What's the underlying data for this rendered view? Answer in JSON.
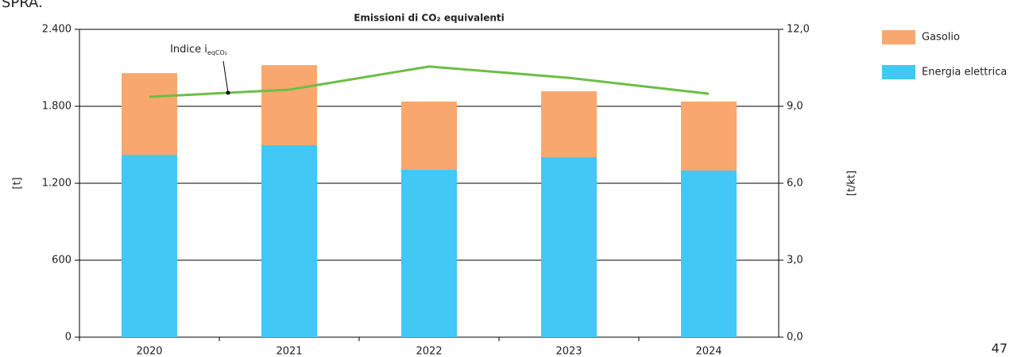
{
  "header_fragment": "SPRA.",
  "page_number": "47",
  "chart_data": {
    "type": "bar",
    "stacked": true,
    "title": "Emissioni di CO₂ equivalenti",
    "ylabel": "[t]",
    "y2label": "[t/kt]",
    "annotation": {
      "text": "Indice i",
      "sub": "eqCO₂"
    },
    "categories": [
      "2020",
      "2021",
      "2022",
      "2023",
      "2024"
    ],
    "series": [
      {
        "name": "Energia elettrica",
        "type": "bar",
        "color": "#41c8f4",
        "values": [
          1422,
          1497,
          1305,
          1404,
          1299
        ]
      },
      {
        "name": "Gasolio",
        "type": "bar",
        "color": "#f8a86e",
        "values": [
          637,
          624,
          532,
          513,
          538
        ]
      },
      {
        "type": "line",
        "axis": "y2",
        "color": "#6dbe45",
        "values": [
          9.37,
          9.65,
          10.55,
          10.11,
          9.49
        ]
      }
    ],
    "ylim": [
      0,
      2400
    ],
    "yticks": [
      0,
      600,
      {
        "value": 1200,
        "label": "1.200"
      },
      {
        "value": 1800,
        "label": "1.800"
      },
      {
        "value": 2400,
        "label": "2.400"
      }
    ],
    "y2lim": [
      0,
      12
    ],
    "y2ticks": [
      {
        "value": 0,
        "label": "0,0"
      },
      {
        "value": 3,
        "label": "3,0"
      },
      {
        "value": 6,
        "label": "6,0"
      },
      {
        "value": 9,
        "label": "9,0"
      },
      {
        "value": 12,
        "label": "12,0"
      }
    ],
    "grid": true,
    "legend": "right"
  }
}
